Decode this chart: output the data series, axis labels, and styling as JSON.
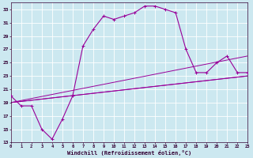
{
  "xlabel": "Windchill (Refroidissement éolien,°C)",
  "bg_color": "#cce8f0",
  "line_color": "#990099",
  "grid_color": "#ffffff",
  "xmin": 0,
  "xmax": 23,
  "ymin": 13,
  "ymax": 34,
  "yticks": [
    13,
    15,
    17,
    19,
    21,
    23,
    25,
    27,
    29,
    31,
    33
  ],
  "xticks": [
    0,
    1,
    2,
    3,
    4,
    5,
    6,
    7,
    8,
    9,
    10,
    11,
    12,
    13,
    14,
    15,
    16,
    17,
    18,
    19,
    20,
    21,
    22,
    23
  ],
  "curve_x": [
    0,
    1,
    2,
    3,
    4,
    5,
    6,
    7,
    8,
    9,
    10,
    11,
    12,
    13,
    14,
    15,
    16,
    17,
    18,
    19,
    20,
    21,
    22,
    23
  ],
  "curve_y": [
    20,
    18.5,
    18.5,
    15,
    13.5,
    16.5,
    20,
    27.5,
    30,
    32,
    31.5,
    32,
    32.5,
    33.5,
    33.5,
    33,
    32.5,
    27,
    23.5,
    23.5,
    25,
    26,
    23.5,
    23.5
  ],
  "line1_x": [
    0,
    23
  ],
  "line1_y": [
    19,
    23
  ],
  "line2_x": [
    0,
    23
  ],
  "line2_y": [
    19,
    26
  ],
  "line3_x": [
    0,
    23
  ],
  "line3_y": [
    19,
    23
  ]
}
